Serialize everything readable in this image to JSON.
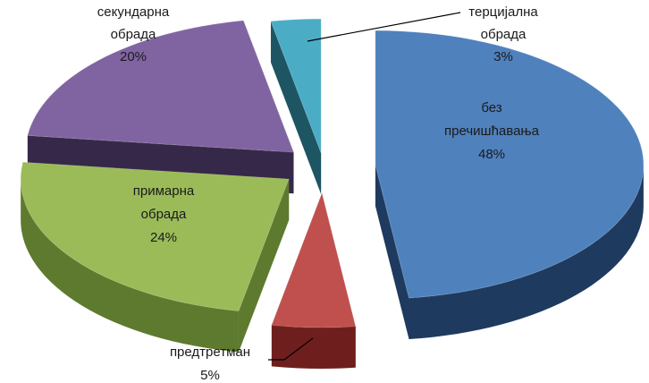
{
  "chart_data": {
    "type": "pie",
    "title": "",
    "style": "3d-exploded",
    "legend": "none",
    "unit": "%",
    "slices": [
      {
        "label_lines": [
          "без",
          "пречишћавања"
        ],
        "value": 48,
        "value_label": "48%",
        "color": "#4F81BD",
        "side_color": "#1F3A5F"
      },
      {
        "label_lines": [
          "предтретман"
        ],
        "value": 5,
        "value_label": "5%",
        "color": "#C0504D",
        "side_color": "#6E1F1D"
      },
      {
        "label_lines": [
          "примарна",
          "обрада"
        ],
        "value": 24,
        "value_label": "24%",
        "color": "#9BBB59",
        "side_color": "#5E7A2E"
      },
      {
        "label_lines": [
          "секундарна",
          "обрада"
        ],
        "value": 20,
        "value_label": "20%",
        "color": "#8064A2",
        "side_color": "#362848"
      },
      {
        "label_lines": [
          "терцијална",
          "обрада"
        ],
        "value": 3,
        "value_label": "3%",
        "color": "#4BACC6",
        "side_color": "#1D5562"
      }
    ]
  }
}
